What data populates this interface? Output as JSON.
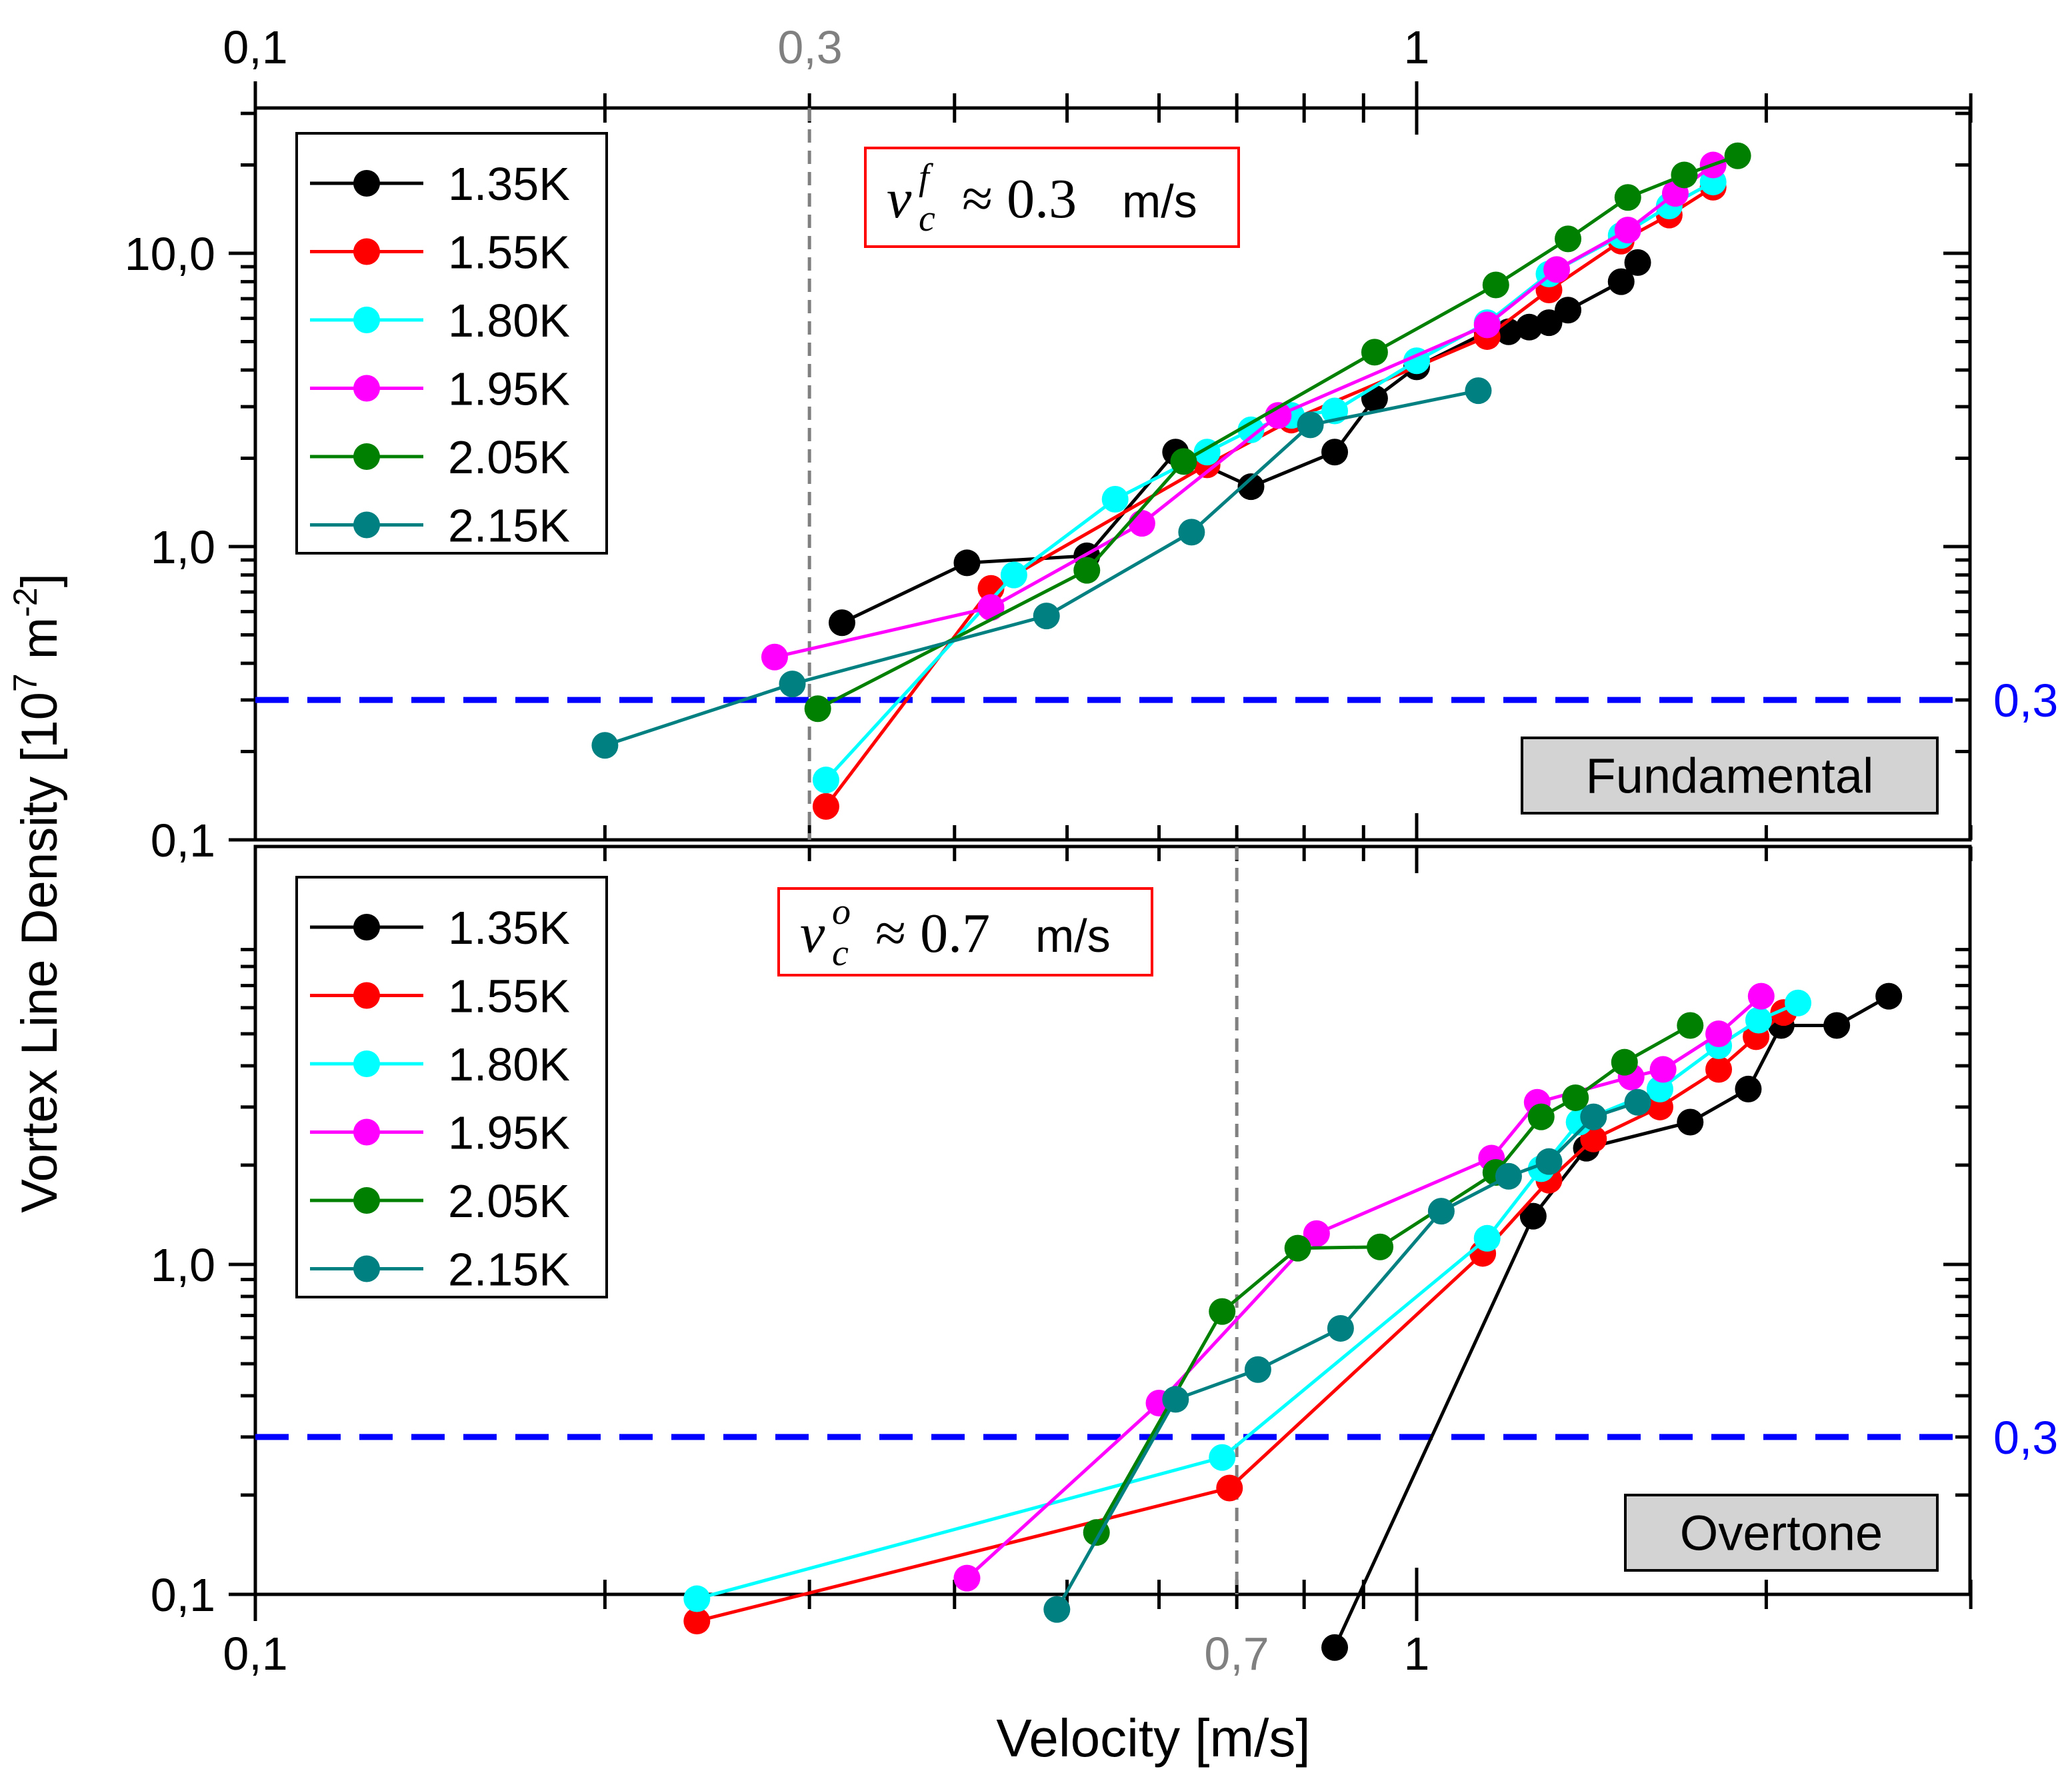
{
  "figure": {
    "top_axis_ticks": [
      "0,1",
      "1"
    ],
    "bottom_axis_ticks": [
      "0,1",
      "1"
    ],
    "top_axis_extra": "0,3",
    "bottom_axis_extra": "0,7",
    "ylabel": "Vortex Line Density [10",
    "ylabel_exp": "7",
    "ylabel_unit": " m",
    "ylabel_unit_exp": "-2",
    "ylabel_end": "]",
    "xlabel": "Velocity [m/s]",
    "colors": {
      "1.35K": "#000000",
      "1.55K": "#ff0000",
      "1.80K": "#00ffff",
      "1.95K": "#ff00ff",
      "2.05K": "#008000",
      "2.15K": "#008080",
      "threshold": "#0000ff",
      "vline": "#808080"
    }
  },
  "chart_data": [
    {
      "type": "line",
      "scale": "log-log",
      "panel_label": "Fundamental",
      "annotation": {
        "v": "v",
        "sup": "f",
        "sub": "c",
        "text": "≈ 0.3",
        "unit": "m/s"
      },
      "ylim": [
        0.1,
        25
      ],
      "xlim": [
        0.1,
        3
      ],
      "yticks": [
        "0,1",
        "1,0",
        "10,0"
      ],
      "threshold_y": 0.3,
      "threshold_label": "0,3",
      "vline_x": 0.3,
      "grid": false,
      "legend_position": "top-left",
      "series": [
        {
          "name": "1.35K",
          "x": [
            0.32,
            0.41,
            0.52,
            0.62,
            0.72,
            0.85,
            0.92,
            1.0,
            1.15,
            1.2,
            1.25,
            1.3,
            1.35,
            1.5,
            1.55
          ],
          "y": [
            0.55,
            0.88,
            0.93,
            2.1,
            1.6,
            2.1,
            3.2,
            4.1,
            5.4,
            5.4,
            5.6,
            5.8,
            6.4,
            8.0,
            9.3
          ]
        },
        {
          "name": "1.55K",
          "x": [
            0.31,
            0.43,
            0.66,
            0.78,
            1.15,
            1.3,
            1.5,
            1.65,
            1.8
          ],
          "y": [
            0.13,
            0.72,
            1.9,
            2.7,
            5.2,
            7.5,
            11.0,
            13.5,
            16.8
          ]
        },
        {
          "name": "1.80K",
          "x": [
            0.31,
            0.45,
            0.55,
            0.66,
            0.72,
            0.78,
            0.85,
            1.0,
            1.15,
            1.3,
            1.5,
            1.65,
            1.8
          ],
          "y": [
            0.16,
            0.8,
            1.45,
            2.1,
            2.5,
            2.8,
            2.9,
            4.3,
            5.8,
            8.5,
            11.5,
            14.5,
            17.5
          ]
        },
        {
          "name": "1.95K",
          "x": [
            0.28,
            0.43,
            0.58,
            0.76,
            1.15,
            1.32,
            1.52,
            1.67,
            1.8
          ],
          "y": [
            0.42,
            0.62,
            1.2,
            2.8,
            5.7,
            8.8,
            12.0,
            16.0,
            20.0
          ]
        },
        {
          "name": "2.05K",
          "x": [
            0.305,
            0.52,
            0.63,
            0.92,
            1.17,
            1.35,
            1.52,
            1.7,
            1.89
          ],
          "y": [
            0.28,
            0.83,
            1.95,
            4.6,
            7.8,
            11.2,
            15.5,
            18.5,
            21.5
          ]
        },
        {
          "name": "2.15K",
          "x": [
            0.2,
            0.29,
            0.48,
            0.64,
            0.81,
            1.13
          ],
          "y": [
            0.21,
            0.34,
            0.58,
            1.12,
            2.6,
            3.4
          ]
        }
      ]
    },
    {
      "type": "line",
      "scale": "log-log",
      "panel_label": "Overtone",
      "annotation": {
        "v": "v",
        "sup": "o",
        "sub": "c",
        "text": "≈ 0.7",
        "unit": "m/s"
      },
      "ylim": [
        0.05,
        8
      ],
      "xlim": [
        0.1,
        3
      ],
      "yticks": [
        "0,1",
        "1,0"
      ],
      "threshold_y": 0.3,
      "threshold_label": "0,3",
      "vline_x": 0.7,
      "grid": false,
      "legend_position": "top-left",
      "series": [
        {
          "name": "1.35K",
          "x": [
            0.85,
            1.26,
            1.4,
            1.72,
            1.93,
            2.06,
            2.3,
            2.55
          ],
          "y": [
            0.069,
            1.4,
            2.25,
            2.7,
            3.4,
            5.3,
            5.3,
            6.5
          ]
        },
        {
          "name": "1.55K",
          "x": [
            0.24,
            0.69,
            1.14,
            1.3,
            1.42,
            1.62,
            1.82,
            1.96,
            2.07
          ],
          "y": [
            0.083,
            0.21,
            1.08,
            1.8,
            2.4,
            3.0,
            3.9,
            4.9,
            5.8
          ]
        },
        {
          "name": "1.80K",
          "x": [
            0.24,
            0.68,
            1.15,
            1.28,
            1.38,
            1.62,
            1.82,
            1.97,
            2.13
          ],
          "y": [
            0.097,
            0.26,
            1.2,
            1.95,
            2.7,
            3.4,
            4.6,
            5.5,
            6.2
          ]
        },
        {
          "name": "1.95K",
          "x": [
            0.41,
            0.6,
            0.82,
            1.16,
            1.27,
            1.53,
            1.63,
            1.82,
            1.98
          ],
          "y": [
            0.112,
            0.38,
            1.24,
            2.1,
            3.1,
            3.7,
            3.9,
            5.0,
            6.5
          ]
        },
        {
          "name": "2.05K",
          "x": [
            0.53,
            0.68,
            0.79,
            0.93,
            1.17,
            1.28,
            1.37,
            1.51,
            1.72
          ],
          "y": [
            0.154,
            0.72,
            1.12,
            1.13,
            1.9,
            2.8,
            3.2,
            4.1,
            5.3
          ]
        },
        {
          "name": "2.15K",
          "x": [
            0.49,
            0.62,
            0.73,
            0.86,
            1.05,
            1.2,
            1.3,
            1.42,
            1.55
          ],
          "y": [
            0.09,
            0.39,
            0.48,
            0.64,
            1.45,
            1.85,
            2.05,
            2.8,
            3.1
          ]
        }
      ]
    }
  ]
}
